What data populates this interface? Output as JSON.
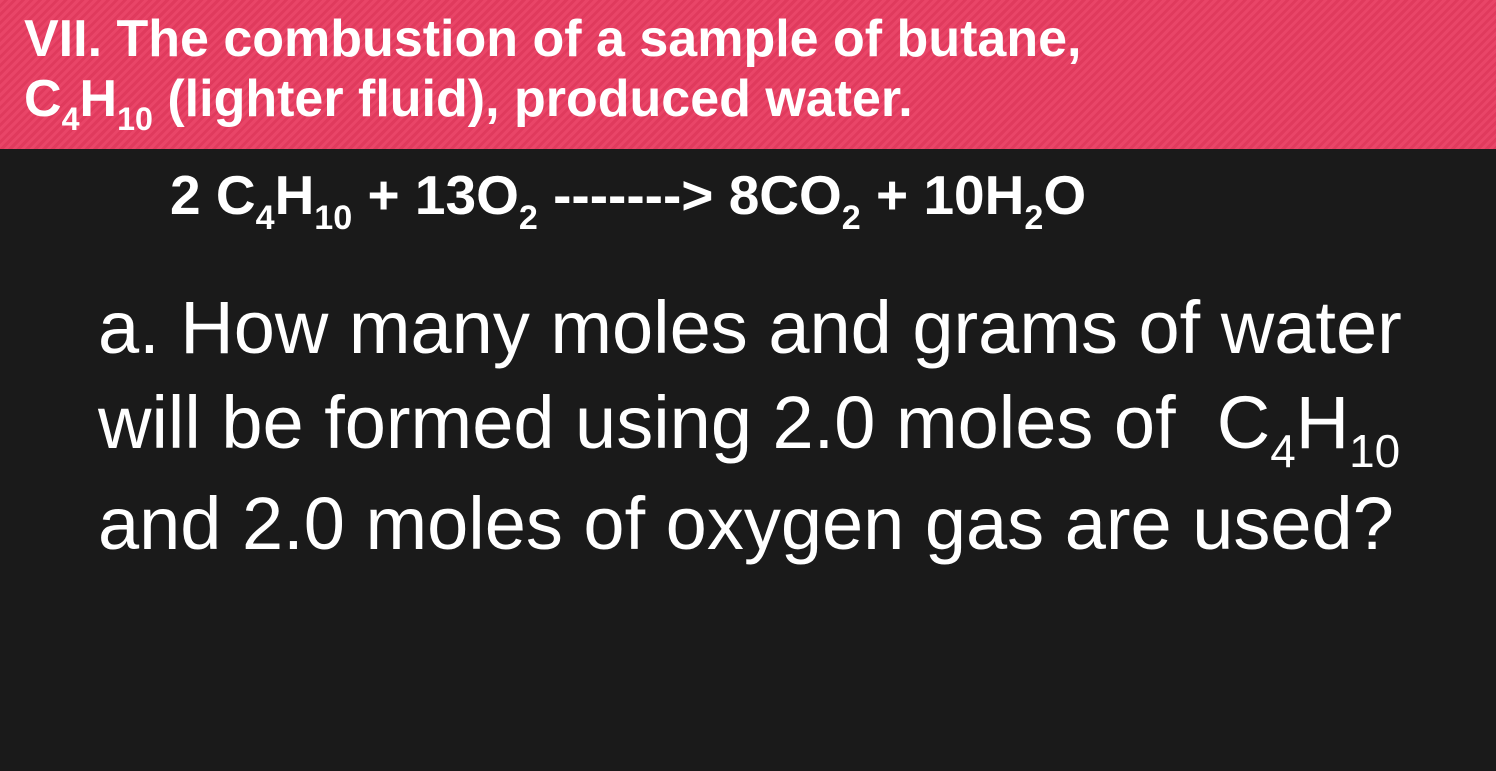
{
  "colors": {
    "header_bg": "#e94568",
    "header_stripe": "#e03a5d",
    "body_bg": "#1a1a1a",
    "text": "#ffffff"
  },
  "typography": {
    "header_fontsize": 52,
    "header_weight": "bold",
    "equation_fontsize": 55,
    "equation_weight": "bold",
    "question_fontsize": 74,
    "question_weight": 300
  },
  "header": {
    "line1_prefix": "VII. The combustion of a sample of butane, ",
    "line2_formula_C": "C",
    "line2_sub4": "4",
    "line2_formula_H": "H",
    "line2_sub10": "10",
    "line2_suffix": " (lighter fluid), produced water."
  },
  "equation": {
    "coef1": "2 ",
    "c": "C",
    "sub4": "4",
    "h": "H",
    "sub10": "10",
    "plus1": " + ",
    "coef2": "13",
    "o": "O",
    "sub2a": "2",
    "arrow": " -------> ",
    "coef3": "8",
    "co": "CO",
    "sub2b": "2",
    "plus2": " + ",
    "coef4": "10",
    "h2": "H",
    "sub2c": "2",
    "o2": "O"
  },
  "question": {
    "part1": "a. How many moles and grams of water will be formed using 2.0 moles of  ",
    "c": "C",
    "sub4": "4",
    "h": "H",
    "sub10": "10 ",
    "part2": "and 2.0 moles of oxygen gas are used?"
  }
}
